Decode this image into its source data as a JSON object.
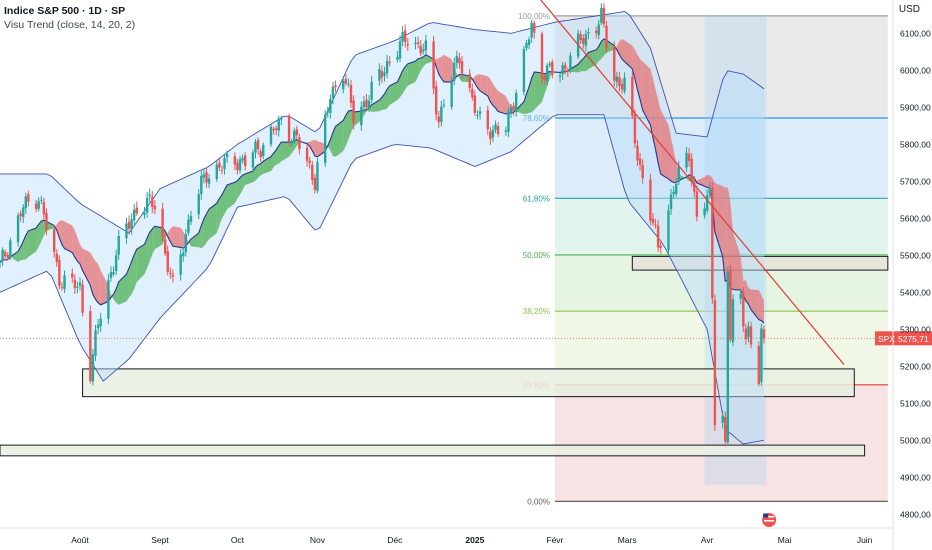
{
  "header": {
    "title": "Indice S&P 500 · 1D · SP",
    "indicator": "Visu Trend (close, 14, 20, 2)",
    "currency": "USD"
  },
  "colors": {
    "up": "#26a69a",
    "down": "#ef5350",
    "trend_up": "#4caf50",
    "trend_down": "#e57373",
    "band_fill": "#bbdefb",
    "band_line": "#3f51b5",
    "trendline": "#e53935",
    "zone_fill": "#e8f0e0",
    "zone_fill2": "#e8e2d8"
  },
  "price_badge": {
    "symbol": "SPX",
    "value": "5275,71",
    "price": 5275.71
  },
  "chart_data": {
    "type": "candlestick",
    "y_axis": {
      "min": 4790,
      "max": 6190,
      "ticks": [
        "6100,00",
        "6000,00",
        "5900,00",
        "5800,00",
        "5700,00",
        "5600,00",
        "5500,00",
        "5400,00",
        "5300,00",
        "5200,00",
        "5100,00",
        "5000,00",
        "4900,00",
        "4800,00"
      ],
      "tick_values": [
        6100,
        6000,
        5900,
        5800,
        5700,
        5600,
        5500,
        5400,
        5300,
        5200,
        5100,
        5000,
        4900,
        4800
      ]
    },
    "x_axis": {
      "labels": [
        "Août",
        "Sept",
        "Oct",
        "Nov",
        "Déc",
        "2025",
        "Févr",
        "Mars",
        "Avr",
        "Mai",
        "Juin"
      ],
      "label_dates": [
        "2024-08-01",
        "2024-09-01",
        "2024-10-01",
        "2024-11-01",
        "2024-12-01",
        "2025-01-01",
        "2025-02-01",
        "2025-03-01",
        "2025-04-01",
        "2025-05-01",
        "2025-06-01"
      ],
      "range": [
        "2024-07-01",
        "2025-06-12"
      ]
    },
    "anchors": [
      [
        "2024-07-01",
        5470
      ],
      [
        "2024-07-10",
        5630
      ],
      [
        "2024-07-16",
        5660
      ],
      [
        "2024-07-24",
        5440
      ],
      [
        "2024-08-01",
        5410
      ],
      [
        "2024-08-05",
        5190
      ],
      [
        "2024-08-08",
        5310
      ],
      [
        "2024-08-15",
        5510
      ],
      [
        "2024-08-23",
        5630
      ],
      [
        "2024-08-30",
        5640
      ],
      [
        "2024-09-06",
        5410
      ],
      [
        "2024-09-13",
        5620
      ],
      [
        "2024-09-19",
        5720
      ],
      [
        "2024-09-30",
        5760
      ],
      [
        "2024-10-04",
        5750
      ],
      [
        "2024-10-18",
        5860
      ],
      [
        "2024-10-24",
        5810
      ],
      [
        "2024-10-31",
        5705
      ],
      [
        "2024-11-06",
        5930
      ],
      [
        "2024-11-11",
        6000
      ],
      [
        "2024-11-15",
        5870
      ],
      [
        "2024-11-20",
        5920
      ],
      [
        "2024-11-29",
        6030
      ],
      [
        "2024-12-06",
        6090
      ],
      [
        "2024-12-13",
        6050
      ],
      [
        "2024-12-18",
        5870
      ],
      [
        "2024-12-26",
        6040
      ],
      [
        "2025-01-02",
        5870
      ],
      [
        "2025-01-10",
        5830
      ],
      [
        "2025-01-13",
        5840
      ],
      [
        "2025-01-23",
        6120
      ],
      [
        "2025-01-27",
        6000
      ],
      [
        "2025-02-03",
        5990
      ],
      [
        "2025-02-10",
        6070
      ],
      [
        "2025-02-19",
        6140
      ],
      [
        "2025-02-24",
        5980
      ],
      [
        "2025-02-28",
        5960
      ],
      [
        "2025-03-03",
        5850
      ],
      [
        "2025-03-06",
        5740
      ],
      [
        "2025-03-10",
        5610
      ],
      [
        "2025-03-13",
        5520
      ],
      [
        "2025-03-19",
        5680
      ],
      [
        "2025-03-25",
        5780
      ],
      [
        "2025-03-28",
        5600
      ],
      [
        "2025-04-02",
        5660
      ],
      [
        "2025-04-03",
        5400
      ],
      [
        "2025-04-04",
        5070
      ],
      [
        "2025-04-07",
        5060
      ],
      [
        "2025-04-08",
        4980
      ],
      [
        "2025-04-09",
        5460
      ],
      [
        "2025-04-10",
        5270
      ],
      [
        "2025-04-11",
        5360
      ],
      [
        "2025-04-14",
        5400
      ],
      [
        "2025-04-16",
        5280
      ],
      [
        "2025-04-17",
        5285
      ],
      [
        "2025-04-21",
        5160
      ],
      [
        "2025-04-22",
        5290
      ],
      [
        "2025-04-23",
        5275.71
      ]
    ],
    "bollinger": {
      "upper": [
        [
          "2024-07-01",
          5720
        ],
        [
          "2024-07-20",
          5720
        ],
        [
          "2024-08-01",
          5640
        ],
        [
          "2024-08-20",
          5560
        ],
        [
          "2024-09-01",
          5680
        ],
        [
          "2024-09-20",
          5740
        ],
        [
          "2024-10-01",
          5800
        ],
        [
          "2024-10-20",
          5880
        ],
        [
          "2024-11-01",
          5830
        ],
        [
          "2024-11-15",
          6040
        ],
        [
          "2024-12-01",
          6080
        ],
        [
          "2024-12-15",
          6130
        ],
        [
          "2025-01-01",
          6110
        ],
        [
          "2025-01-15",
          6100
        ],
        [
          "2025-02-01",
          6130
        ],
        [
          "2025-02-20",
          6150
        ],
        [
          "2025-03-01",
          6160
        ],
        [
          "2025-03-10",
          6060
        ],
        [
          "2025-03-20",
          5830
        ],
        [
          "2025-04-01",
          5820
        ],
        [
          "2025-04-08",
          6000
        ],
        [
          "2025-04-15",
          5990
        ],
        [
          "2025-04-23",
          5950
        ]
      ],
      "lower": [
        [
          "2024-07-01",
          5400
        ],
        [
          "2024-07-20",
          5460
        ],
        [
          "2024-08-01",
          5260
        ],
        [
          "2024-08-10",
          5160
        ],
        [
          "2024-08-20",
          5220
        ],
        [
          "2024-09-01",
          5330
        ],
        [
          "2024-09-20",
          5470
        ],
        [
          "2024-10-01",
          5630
        ],
        [
          "2024-10-20",
          5660
        ],
        [
          "2024-11-01",
          5560
        ],
        [
          "2024-11-15",
          5760
        ],
        [
          "2024-12-01",
          5800
        ],
        [
          "2024-12-15",
          5790
        ],
        [
          "2025-01-01",
          5740
        ],
        [
          "2025-01-15",
          5780
        ],
        [
          "2025-02-01",
          5880
        ],
        [
          "2025-02-20",
          5880
        ],
        [
          "2025-03-01",
          5650
        ],
        [
          "2025-03-15",
          5530
        ],
        [
          "2025-04-01",
          5300
        ],
        [
          "2025-04-08",
          5030
        ],
        [
          "2025-04-15",
          4990
        ],
        [
          "2025-04-23",
          5000
        ]
      ]
    },
    "fibonacci": {
      "start_date": "2025-02-01",
      "end_date": "2025-06-10",
      "levels": [
        {
          "label": "100,00%",
          "price": 6147,
          "color": "#9e9e9e",
          "fill": "#e6e6e6"
        },
        {
          "label": "78,60%",
          "price": 5871,
          "color": "#2196f3",
          "fill": "#d6e9f8"
        },
        {
          "label": "61,80%",
          "price": 5654,
          "color": "#26a69a",
          "fill": "#dcf2ea"
        },
        {
          "label": "50,00%",
          "price": 5501,
          "color": "#4caf50",
          "fill": "#e1f3dd"
        },
        {
          "label": "38,20%",
          "price": 5349,
          "color": "#8bc34a",
          "fill": "#eef6e0"
        },
        {
          "label": "23,60%",
          "price": 5150,
          "color": "#e53935",
          "fill": "#f6dede"
        },
        {
          "label": "0,00%",
          "price": 4835,
          "color": "#616161",
          "fill": "#f3cccc"
        }
      ]
    },
    "zones": [
      {
        "from": "2024-08-02",
        "to": "2025-05-28",
        "top": 5193,
        "bottom": 5118
      },
      {
        "from": "2024-07-01",
        "to": "2025-06-01",
        "top": 4987,
        "bottom": 4958
      },
      {
        "from": "2025-03-03",
        "to": "2025-06-10",
        "top": 5497,
        "bottom": 5460
      }
    ],
    "trendline": {
      "from": [
        "2025-01-17",
        6270
      ],
      "to": [
        "2025-05-24",
        5205
      ]
    }
  }
}
